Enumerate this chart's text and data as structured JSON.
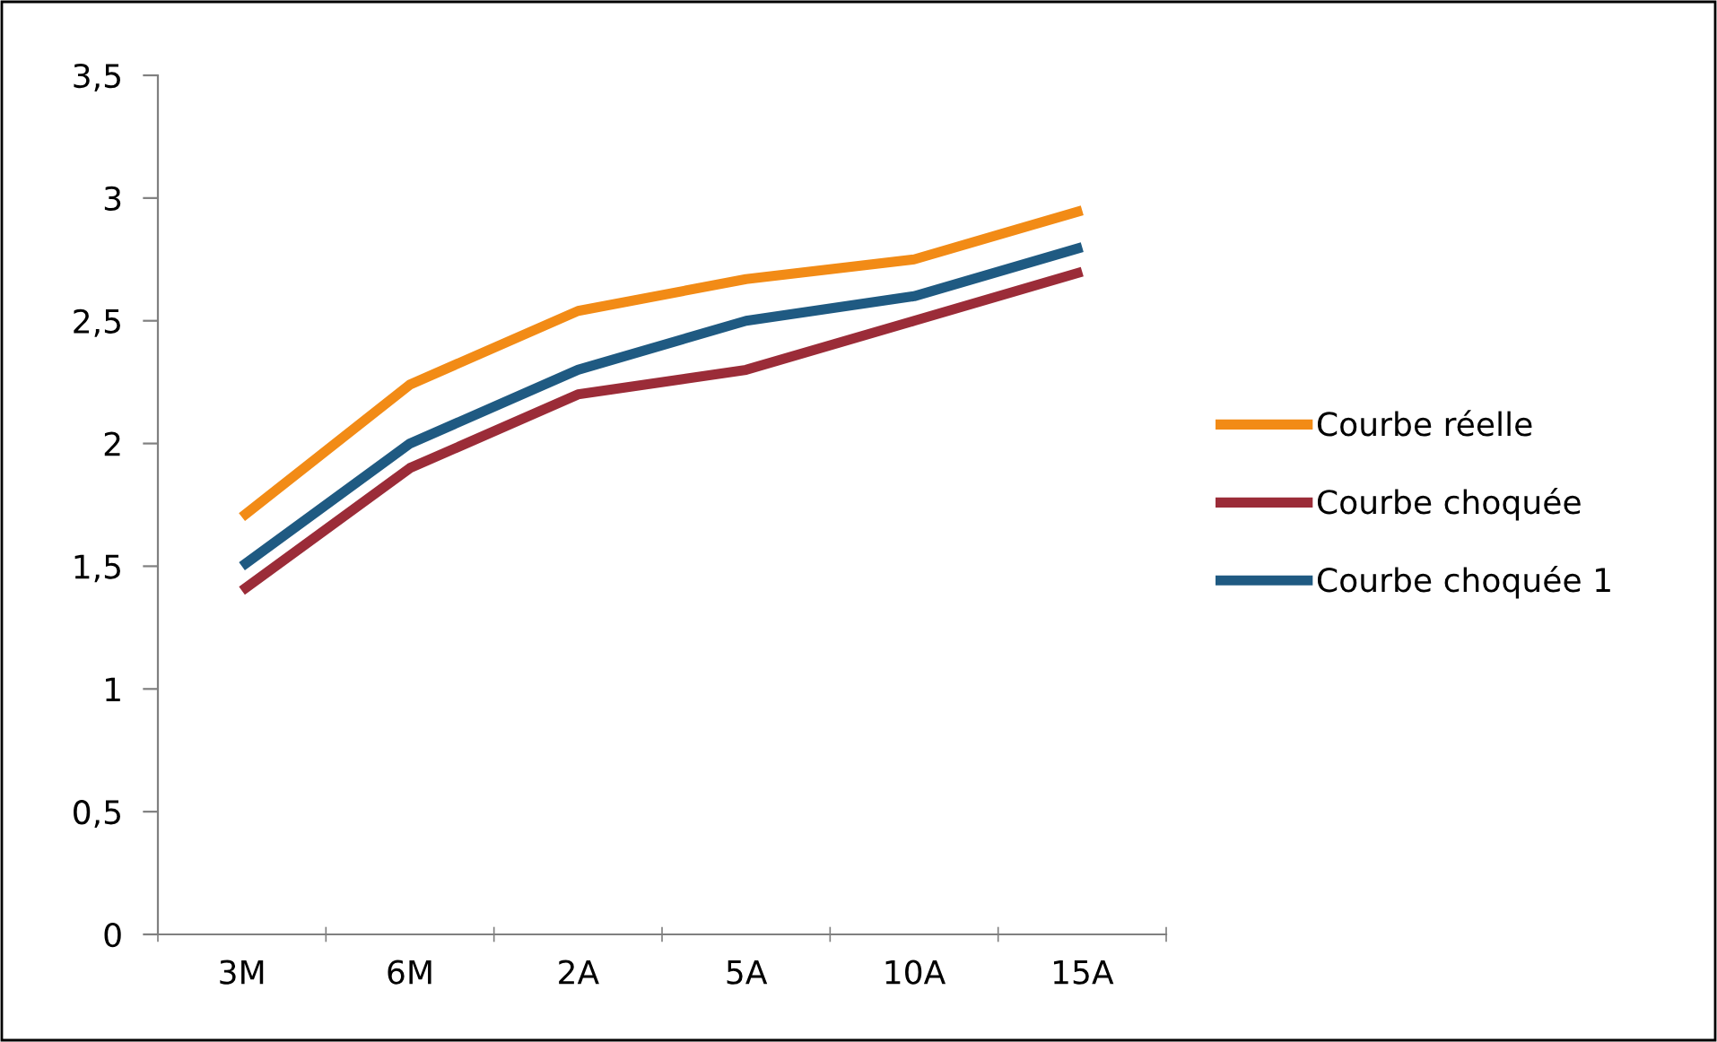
{
  "chart_data": {
    "type": "line",
    "categories": [
      "3M",
      "6M",
      "2A",
      "5A",
      "10A",
      "15A"
    ],
    "series": [
      {
        "name": "Courbe réelle",
        "color": "#f28b16",
        "values": [
          1.7,
          2.24,
          2.54,
          2.67,
          2.75,
          2.95
        ]
      },
      {
        "name": "Courbe choquée",
        "color": "#9b2c38",
        "values": [
          1.4,
          1.9,
          2.2,
          2.3,
          2.5,
          2.7
        ]
      },
      {
        "name": "Courbe choquée 1",
        "color": "#1f5a82",
        "values": [
          1.5,
          2.0,
          2.3,
          2.5,
          2.6,
          2.8
        ]
      }
    ],
    "ylim": [
      0,
      3.5
    ],
    "yticks": [
      {
        "value": 0,
        "label": "0"
      },
      {
        "value": 0.5,
        "label": "0,5"
      },
      {
        "value": 1,
        "label": "1"
      },
      {
        "value": 1.5,
        "label": "1,5"
      },
      {
        "value": 2,
        "label": "2"
      },
      {
        "value": 2.5,
        "label": "2,5"
      },
      {
        "value": 3,
        "label": "3"
      },
      {
        "value": 3.5,
        "label": "3,5"
      }
    ],
    "grid": false,
    "legend": "right",
    "marker": "none",
    "line_style": "solid"
  }
}
